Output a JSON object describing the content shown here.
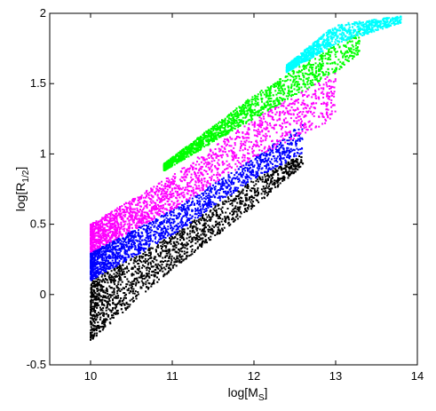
{
  "chart_data": {
    "type": "scatter",
    "title": "",
    "xlabel": {
      "main": "log[M",
      "sub": "S",
      "end": "]"
    },
    "ylabel": {
      "main": "log[R",
      "sub": "1/2",
      "end": "]"
    },
    "xlim": [
      9.5,
      14
    ],
    "ylim": [
      -0.5,
      2
    ],
    "xticks": [
      {
        "value": 10,
        "label": "10"
      },
      {
        "value": 11,
        "label": "11"
      },
      {
        "value": 12,
        "label": "12"
      },
      {
        "value": 13,
        "label": "13"
      },
      {
        "value": 14,
        "label": "14"
      }
    ],
    "yticks": [
      {
        "value": -0.5,
        "label": "-0.5"
      },
      {
        "value": 0,
        "label": "0"
      },
      {
        "value": 0.5,
        "label": "0.5"
      },
      {
        "value": 1,
        "label": "1"
      },
      {
        "value": 1.5,
        "label": "1.5"
      },
      {
        "value": 2,
        "label": "2"
      }
    ],
    "grid": false,
    "legend": "none",
    "series": [
      {
        "color": "#000000",
        "x_range": [
          10.0,
          12.6
        ],
        "band_min": [
          [
            10.0,
            -0.33
          ],
          [
            11.0,
            0.18
          ],
          [
            12.0,
            0.62
          ],
          [
            12.6,
            0.92
          ]
        ],
        "band_max": [
          [
            10.0,
            0.1
          ],
          [
            11.0,
            0.42
          ],
          [
            12.0,
            0.82
          ],
          [
            12.6,
            1.0
          ]
        ]
      },
      {
        "color": "#0000ff",
        "x_range": [
          10.0,
          12.6
        ],
        "band_min": [
          [
            10.0,
            0.1
          ],
          [
            11.0,
            0.42
          ],
          [
            12.0,
            0.82
          ],
          [
            12.6,
            1.0
          ]
        ],
        "band_max": [
          [
            10.0,
            0.3
          ],
          [
            11.0,
            0.6
          ],
          [
            12.0,
            0.97
          ],
          [
            12.6,
            1.22
          ]
        ]
      },
      {
        "color": "#ff00ff",
        "x_range": [
          10.0,
          13.0
        ],
        "band_min": [
          [
            10.0,
            0.3
          ],
          [
            11.0,
            0.6
          ],
          [
            12.0,
            0.97
          ],
          [
            13.0,
            1.25
          ]
        ],
        "band_max": [
          [
            10.0,
            0.5
          ],
          [
            11.0,
            0.85
          ],
          [
            12.0,
            1.25
          ],
          [
            13.0,
            1.58
          ]
        ]
      },
      {
        "color": "#00ff00",
        "x_range": [
          10.9,
          13.3
        ],
        "band_min": [
          [
            10.9,
            0.88
          ],
          [
            12.0,
            1.25
          ],
          [
            13.0,
            1.58
          ],
          [
            13.3,
            1.72
          ]
        ],
        "band_max": [
          [
            10.9,
            0.93
          ],
          [
            12.0,
            1.42
          ],
          [
            13.0,
            1.78
          ],
          [
            13.3,
            1.88
          ]
        ]
      },
      {
        "color": "#00ffff",
        "x_range": [
          12.4,
          13.8
        ],
        "band_min": [
          [
            12.4,
            1.58
          ],
          [
            13.0,
            1.78
          ],
          [
            13.8,
            1.93
          ]
        ],
        "band_max": [
          [
            12.4,
            1.63
          ],
          [
            13.0,
            1.92
          ],
          [
            13.8,
            1.98
          ]
        ]
      }
    ]
  }
}
